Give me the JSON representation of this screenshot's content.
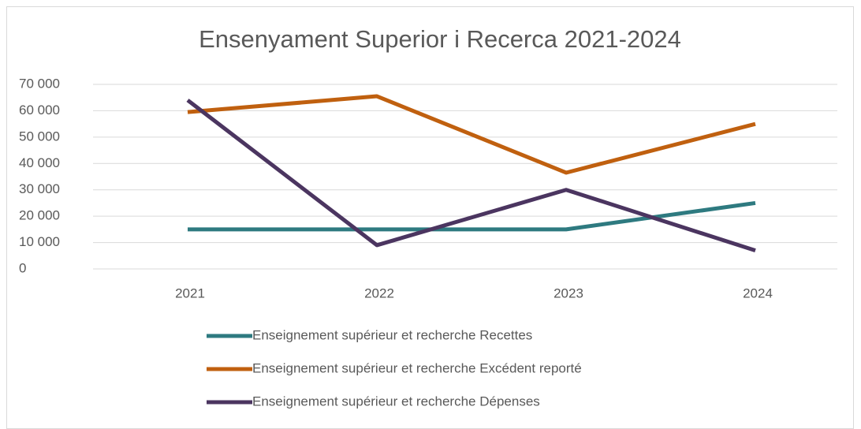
{
  "chart_data": {
    "type": "line",
    "title": "Ensenyament Superior i Recerca 2021-2024",
    "categories": [
      "2021",
      "2022",
      "2023",
      "2024"
    ],
    "series": [
      {
        "name": "Enseignement supérieur et recherche Recettes",
        "color": "#2e7a80",
        "values": [
          15000,
          15000,
          15000,
          25000
        ]
      },
      {
        "name": "Enseignement supérieur et recherche Excédent reporté",
        "color": "#c0600f",
        "values": [
          59500,
          65500,
          36500,
          55000
        ]
      },
      {
        "name": "Enseignement supérieur et recherche Dépenses",
        "color": "#4b3560",
        "values": [
          64000,
          9000,
          30000,
          7000
        ]
      }
    ],
    "ylim": [
      0,
      70000
    ],
    "yticks": [
      0,
      {
        "value": 10000,
        "label": "10 000"
      },
      {
        "value": 20000,
        "label": "20 000"
      },
      {
        "value": 30000,
        "label": "30 000"
      },
      {
        "value": 40000,
        "label": "40 000"
      },
      {
        "value": 50000,
        "label": "50 000"
      },
      {
        "value": 60000,
        "label": "60 000"
      },
      {
        "value": 70000,
        "label": "70 000"
      }
    ],
    "grid": true,
    "legend": "bottom"
  }
}
